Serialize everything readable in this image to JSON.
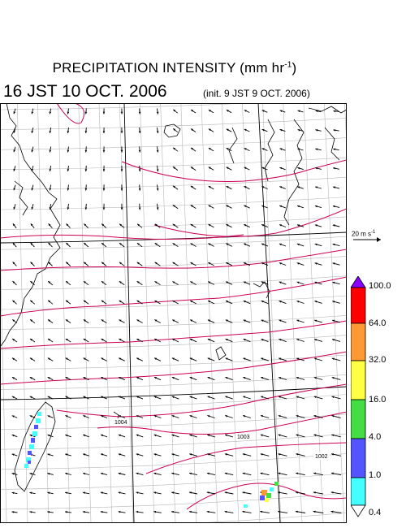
{
  "title": "PRECIPITATION INTENSITY (mm hr",
  "title_unit_sup": "-1",
  "title_close": ")",
  "valid_time": "16 JST 10 OCT. 2006",
  "init_time": "(init. 9 JST 9 OCT. 2006)",
  "reference_vector": {
    "label": "20 m s",
    "sup": "-1"
  },
  "isobars": [
    {
      "label": "1004"
    },
    {
      "label": "1003"
    },
    {
      "label": "1002"
    }
  ],
  "colorbar": {
    "labels": [
      "100.0",
      "64.0",
      "32.0",
      "16.0",
      "4.0",
      "1.0",
      "0.4"
    ],
    "colors": [
      "#8a00ff",
      "#ff0000",
      "#ff9933",
      "#ffff44",
      "#44dd44",
      "#5555ff",
      "#44ffff",
      "#ffffff"
    ]
  },
  "colors": {
    "isobar": "#cc0055",
    "grid": "#b0b0b0",
    "latlon": "#000000"
  }
}
